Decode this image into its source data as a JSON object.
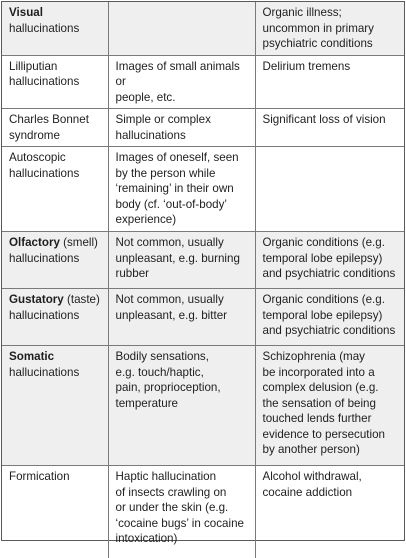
{
  "rows": [
    {
      "term_bold": "Visual",
      "term_rest": "hallucinations",
      "description": "",
      "associations": "Organic illness;\nuncommon in primary\npsychiatric conditions"
    },
    {
      "term_bold": "",
      "term_rest": "Lilliputian\nhallucinations",
      "description": "Images of small animals or\npeople, etc.",
      "associations": "Delirium tremens"
    },
    {
      "term_bold": "",
      "term_rest": "Charles Bonnet\nsyndrome",
      "description": "Simple or complex\nhallucinations",
      "associations": "Significant loss of vision"
    },
    {
      "term_bold": "",
      "term_rest": "Autoscopic\nhallucinations",
      "description": "Images of oneself, seen\nby the person while\n‘remaining’ in their own\nbody (cf. ‘out-of-body’\nexperience)",
      "associations": ""
    },
    {
      "term_bold": "Olfactory",
      "term_rest": " (smell)\nhallucinations",
      "description": "Not common, usually\nunpleasant, e.g. burning\nrubber",
      "associations": "Organic conditions (e.g.\ntemporal lobe epilepsy)\nand psychiatric conditions"
    },
    {
      "term_bold": "Gustatory",
      "term_rest": " (taste)\nhallucinations",
      "description": "Not common, usually\nunpleasant, e.g. bitter",
      "associations": "Organic conditions (e.g.\ntemporal lobe epilepsy)\nand psychiatric conditions"
    },
    {
      "term_bold": "Somatic",
      "term_rest": "\nhallucinations",
      "description": "Bodily sensations,\ne.g. touch/haptic,\npain, proprioception,\ntemperature",
      "associations": "Schizophrenia (may\nbe incorporated into a\ncomplex delusion (e.g.\nthe sensation of being\ntouched lends further\nevidence to persecution\nby another person)"
    },
    {
      "term_bold": "",
      "term_rest": "Formication",
      "description": "Haptic hallucination\nof insects crawling on\nor under the skin (e.g.\n‘cocaine bugs’ in cocaine\nintoxication)",
      "associations": "Alcohol withdrawal,\ncocaine addiction"
    }
  ]
}
